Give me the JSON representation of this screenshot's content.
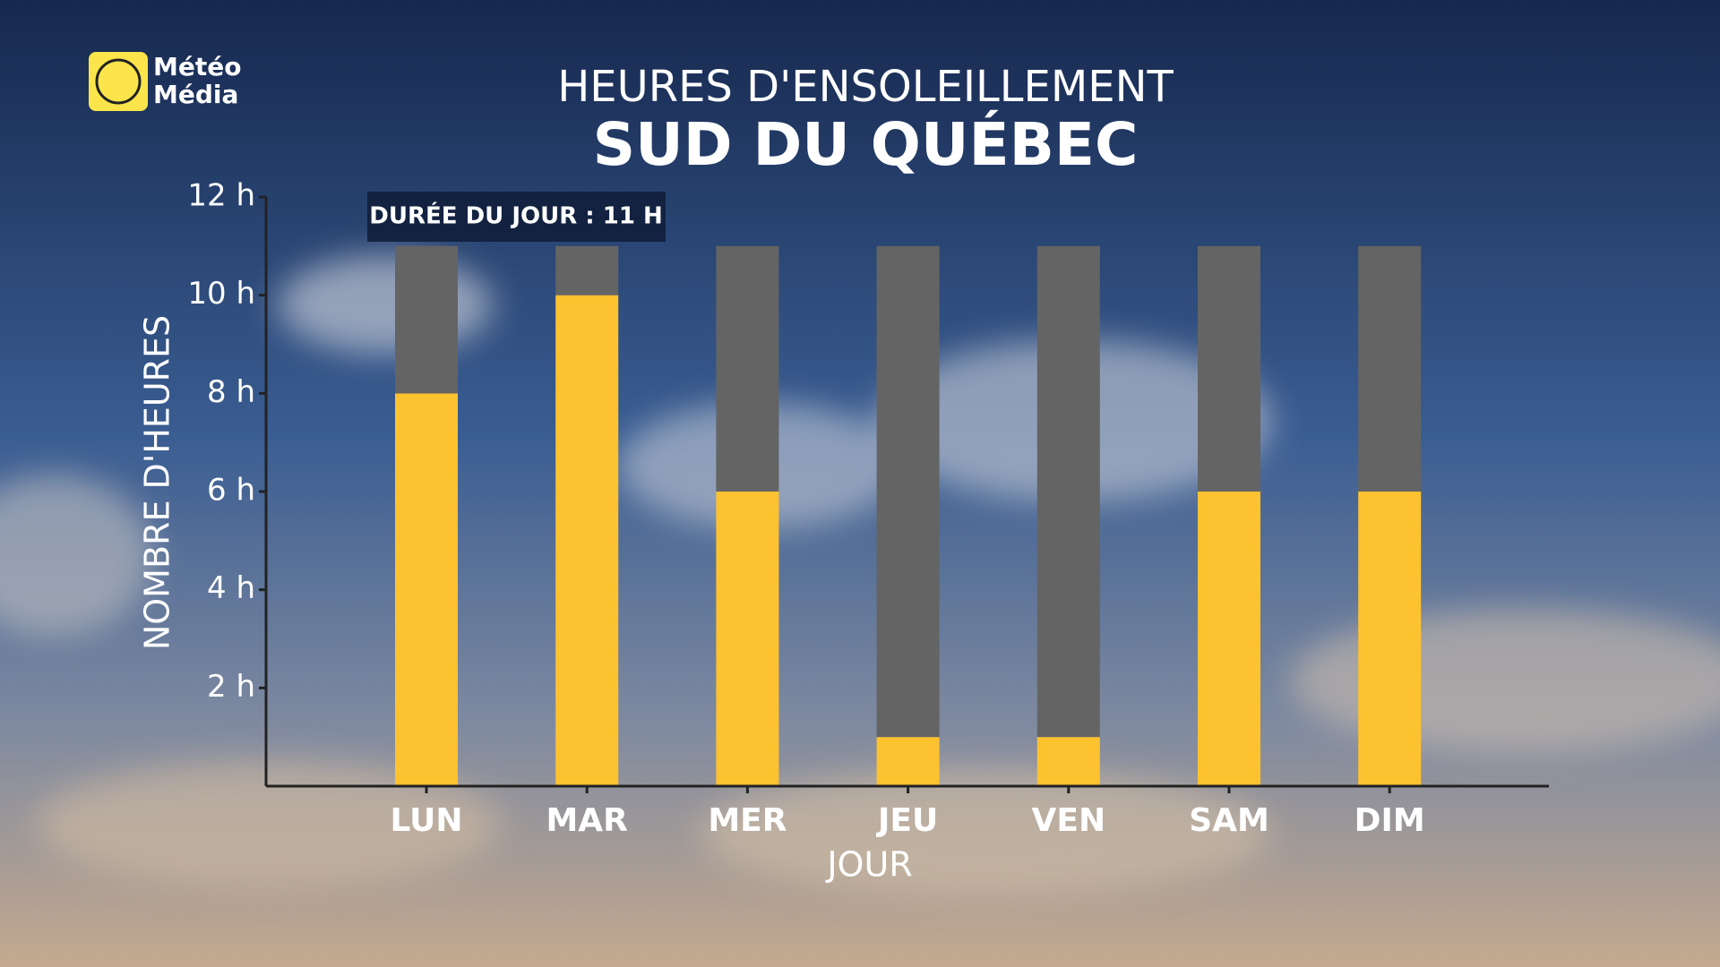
{
  "chart_data": {
    "type": "bar",
    "stacked": true,
    "title": "HEURES D'ENSOLEILLEMENT",
    "subtitle": "SUD DU QUÉBEC",
    "logo_text": [
      "Météo",
      "Média"
    ],
    "annotation": "DURÉE DU JOUR : 11 H",
    "x_label": "JOUR",
    "y_label": "NOMBRE D'HEURES",
    "categories": [
      "LUN",
      "MAR",
      "MER",
      "JEU",
      "VEN",
      "SAM",
      "DIM"
    ],
    "series": [
      {
        "color": "#fdc230",
        "values": [
          8,
          10,
          6,
          1,
          1,
          6,
          6
        ]
      },
      {
        "color": "#646464",
        "values": [
          3,
          1,
          5,
          10,
          10,
          5,
          5
        ]
      }
    ],
    "ylim": [
      0,
      12
    ],
    "yticks": [
      {
        "value": 2,
        "label": "2 h"
      },
      {
        "value": 4,
        "label": "4 h"
      },
      {
        "value": 6,
        "label": "6 h"
      },
      {
        "value": 8,
        "label": "8 h"
      },
      {
        "value": 10,
        "label": "10 h"
      },
      {
        "value": 12,
        "label": "12 h"
      }
    ]
  }
}
